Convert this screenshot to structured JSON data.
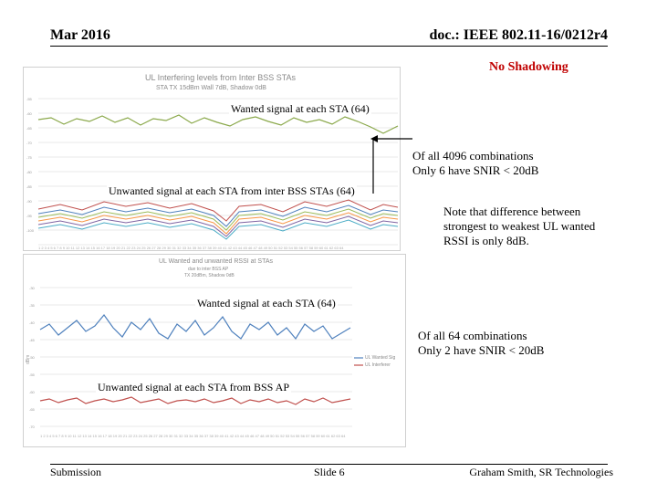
{
  "header": {
    "date": "Mar 2016",
    "doc": "doc.: IEEE 802.11-16/0212r4"
  },
  "banner": "No Shadowing",
  "chart1": {
    "title": "UL Interfering levels from Inter BSS STAs",
    "subtitle": "STA TX 15dBm   Wall 7dB, Shadow 0dB",
    "wanted_label": "Wanted signal at each STA (64)",
    "unwanted_label": "Unwanted signal at each STA  from inter BSS STAs (64)"
  },
  "chart2": {
    "title": "UL Wanted and unwanted RSSI at STAs",
    "subtitle1": "due to inter BSS AP",
    "subtitle2": "TX 20dBm, Shadow 0dB",
    "wanted_label": "Wanted signal at each STA (64)",
    "unwanted_label": "Unwanted signal at each STA  from BSS AP",
    "legend": [
      "UL Wanted Sig",
      "UL Interferer"
    ],
    "ylabel": "dBm"
  },
  "notes": {
    "n1_line1": "Of all 4096 combinations",
    "n1_line2": "Only 6 have SNIR < 20dB",
    "n2_line1": "Note that difference between",
    "n2_line2": "strongest to weakest UL wanted",
    "n2_line3": "RSSI is only 8dB.",
    "n3_line1": "Of all 64 combinations",
    "n3_line2": "Only 2 have SNIR < 20dB"
  },
  "footer": {
    "left": "Submission",
    "center": "Slide 6",
    "right": "Graham Smith, SR Technologies"
  },
  "colors": {
    "wanted_line": "#4f81bd",
    "unwanted_line": "#c0504d",
    "wanted_line1": "#8aa84a",
    "banner": "#c00000"
  }
}
